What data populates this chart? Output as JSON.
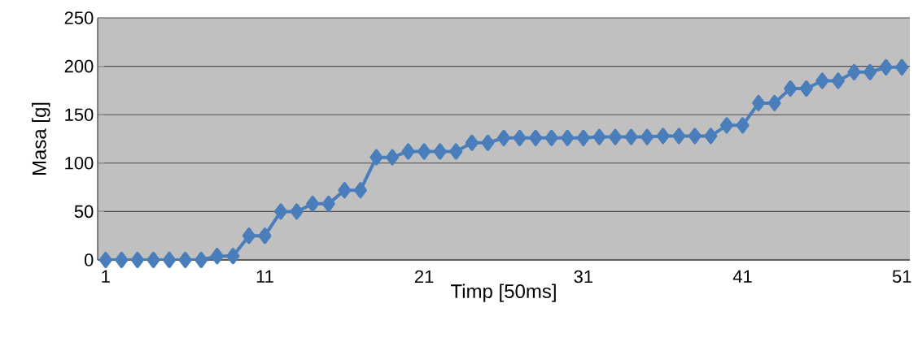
{
  "chart_data": {
    "type": "line",
    "xlabel": "Timp [50ms]",
    "ylabel": "Masa [g]",
    "categories": [
      "1",
      null,
      null,
      null,
      null,
      null,
      null,
      null,
      null,
      null,
      "11",
      null,
      null,
      null,
      null,
      null,
      null,
      null,
      null,
      null,
      "21",
      null,
      null,
      null,
      null,
      null,
      null,
      null,
      null,
      null,
      "31",
      null,
      null,
      null,
      null,
      null,
      null,
      null,
      null,
      null,
      "41",
      null,
      null,
      null,
      null,
      null,
      null,
      null,
      null,
      null,
      "51"
    ],
    "series": [
      {
        "color": "#4a7ebb",
        "values": [
          0,
          0,
          0,
          0,
          0,
          0,
          0,
          4,
          4,
          25,
          25,
          50,
          50,
          58,
          58,
          72,
          72,
          106,
          106,
          112,
          112,
          112,
          112,
          121,
          121,
          126,
          126,
          126,
          126,
          126,
          126,
          127,
          127,
          127,
          127,
          128,
          128,
          128,
          128,
          139,
          139,
          162,
          162,
          177,
          177,
          185,
          185,
          194,
          194,
          199,
          199
        ]
      }
    ],
    "ylim": [
      0,
      250
    ],
    "yticks": [
      0,
      50,
      100,
      150,
      200,
      250
    ],
    "grid": "y",
    "marker": "diamond",
    "line_style": "solid"
  }
}
